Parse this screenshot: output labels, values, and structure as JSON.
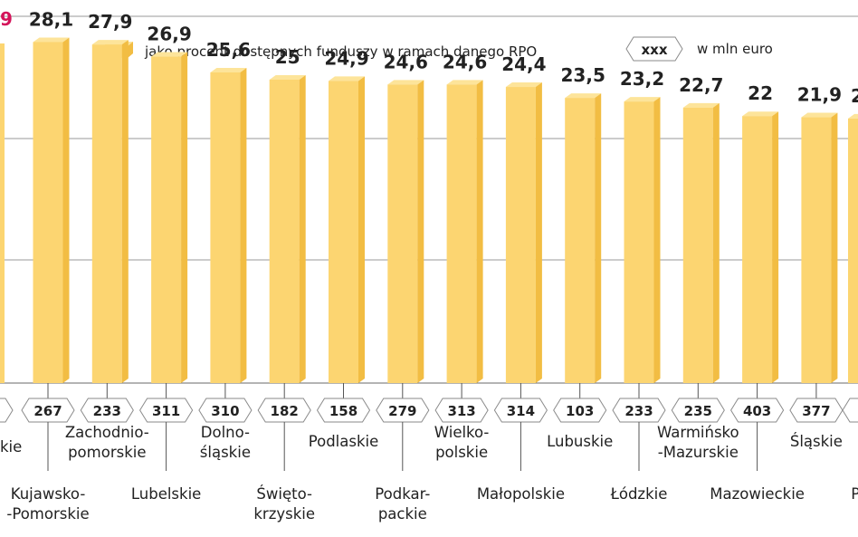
{
  "legend": {
    "bars_label": "jako procent dostępnych funduszy w ramach danego RPO",
    "badge_sample": "xxx",
    "badge_label": "w mln euro"
  },
  "colors": {
    "bar_front": "#fcd571",
    "bar_side": "#f2bd43",
    "bar_top": "#fde49a",
    "highlight": "#d4145a",
    "grid": "#9a9a9a"
  },
  "chart_data": {
    "type": "bar",
    "ylim": [
      0,
      40
    ],
    "partial_left": {
      "value_fragment": "9",
      "badge": "",
      "label": "kie"
    },
    "categories": [
      "Kujawsko-\n-Pomorskie",
      "Zachodnio-\npomorskie",
      "Lubelskie",
      "Dolno-\nśląskie",
      "Święto-\nkrzyskie",
      "Podlaskie",
      "Podkar-\npackie",
      "Wielko-\npolskie",
      "Małopolskie",
      "Lubuskie",
      "Łódzkie",
      "Warmińsko\n-Mazurskie",
      "Mazowieckie",
      "Śląskie",
      "Po"
    ],
    "values": [
      28.1,
      27.9,
      26.9,
      25.6,
      25,
      24.9,
      24.6,
      24.6,
      24.4,
      23.5,
      23.2,
      22.7,
      22,
      21.9,
      null
    ],
    "value_labels": [
      "28,1",
      "27,9",
      "26,9",
      "25,6",
      "25",
      "24,9",
      "24,6",
      "24,6",
      "24,4",
      "23,5",
      "23,2",
      "22,7",
      "22",
      "21,9",
      "2"
    ],
    "badges": [
      "267",
      "233",
      "311",
      "310",
      "182",
      "158",
      "279",
      "313",
      "314",
      "103",
      "233",
      "235",
      "403",
      "377",
      ""
    ]
  }
}
